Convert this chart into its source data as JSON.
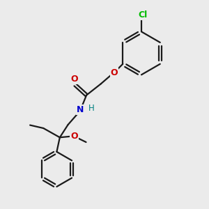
{
  "bg_color": "#ebebeb",
  "bond_color": "#1a1a1a",
  "O_color": "#cc0000",
  "N_color": "#0000cc",
  "H_color": "#008080",
  "Cl_color": "#00bb00",
  "line_width": 1.6,
  "fig_size": [
    3.0,
    3.0
  ],
  "dpi": 100,
  "xlim": [
    0,
    10
  ],
  "ylim": [
    0,
    10
  ]
}
